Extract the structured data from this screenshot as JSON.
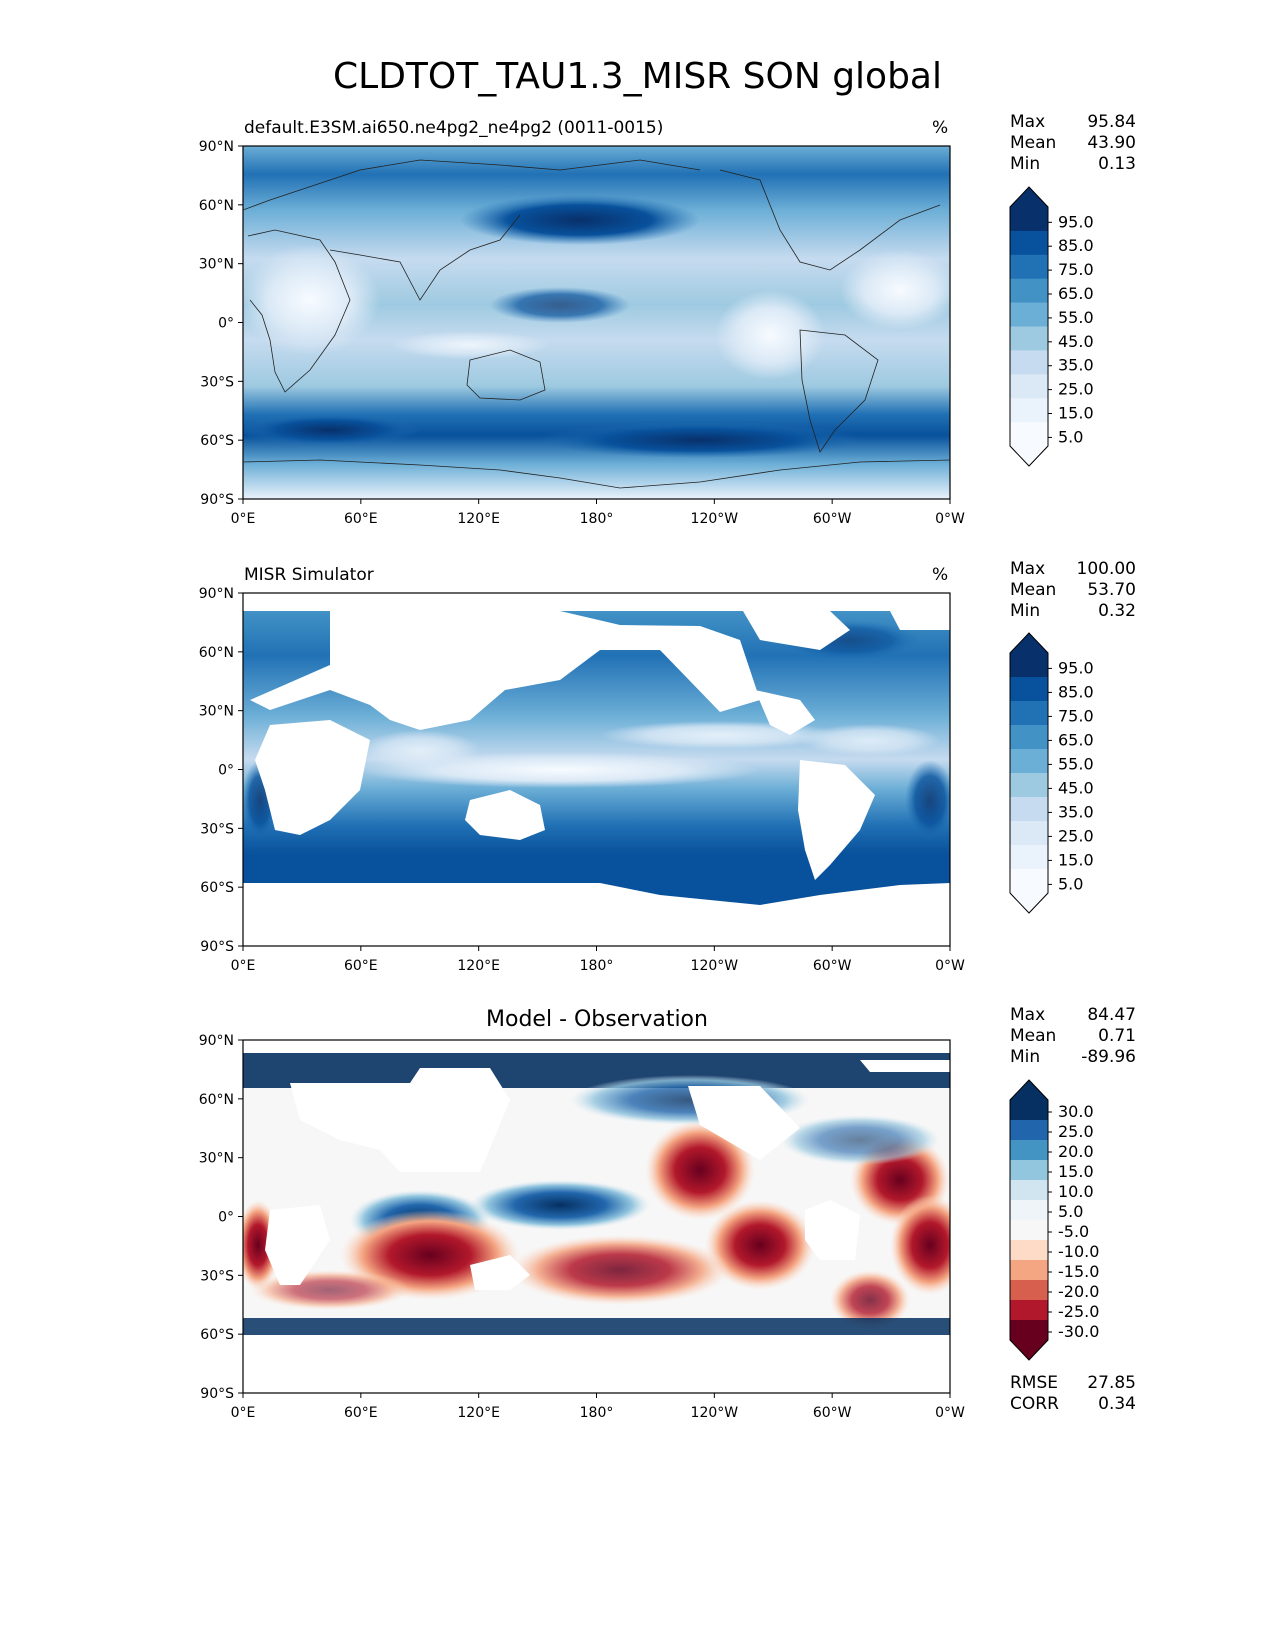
{
  "title": "CLDTOT_TAU1.3_MISR SON global",
  "lat_ticks": [
    "90°N",
    "60°N",
    "30°N",
    "0°",
    "30°S",
    "60°S",
    "90°S"
  ],
  "lon_ticks": [
    "0°E",
    "60°E",
    "120°E",
    "180°",
    "120°W",
    "60°W",
    "0°W"
  ],
  "panels": [
    {
      "id": "model",
      "title_left": "default.E3SM.ai650.ne4pg2_ne4pg2 (0011-0015)",
      "title_center": "",
      "unit": "%",
      "stats": [
        [
          "Max",
          "95.84"
        ],
        [
          "Mean",
          "43.90"
        ],
        [
          "Min",
          "0.13"
        ]
      ],
      "colorbar": {
        "labels": [
          "95.0",
          "85.0",
          "75.0",
          "65.0",
          "55.0",
          "45.0",
          "35.0",
          "25.0",
          "15.0",
          "5.0"
        ],
        "colors": [
          "#08306b",
          "#08519c",
          "#2171b5",
          "#4292c6",
          "#6baed6",
          "#9ecae1",
          "#c6dbef",
          "#dbe9f6",
          "#eaf2fb",
          "#f7fbff"
        ]
      }
    },
    {
      "id": "obs",
      "title_left": "MISR Simulator",
      "title_center": "",
      "unit": "%",
      "stats": [
        [
          "Max",
          "100.00"
        ],
        [
          "Mean",
          "53.70"
        ],
        [
          "Min",
          "0.32"
        ]
      ],
      "colorbar": {
        "labels": [
          "95.0",
          "85.0",
          "75.0",
          "65.0",
          "55.0",
          "45.0",
          "35.0",
          "25.0",
          "15.0",
          "5.0"
        ],
        "colors": [
          "#08306b",
          "#08519c",
          "#2171b5",
          "#4292c6",
          "#6baed6",
          "#9ecae1",
          "#c6dbef",
          "#dbe9f6",
          "#eaf2fb",
          "#f7fbff"
        ]
      }
    },
    {
      "id": "diff",
      "title_left": "",
      "title_center": "Model - Observation",
      "unit": "",
      "stats": [
        [
          "Max",
          "84.47"
        ],
        [
          "Mean",
          "0.71"
        ],
        [
          "Min",
          "-89.96"
        ]
      ],
      "extra_stats": [
        [
          "RMSE",
          "27.85"
        ],
        [
          "CORR",
          "0.34"
        ]
      ],
      "colorbar": {
        "labels": [
          "30.0",
          "25.0",
          "20.0",
          "15.0",
          "10.0",
          "5.0",
          "-5.0",
          "-10.0",
          "-15.0",
          "-20.0",
          "-25.0",
          "-30.0"
        ],
        "colors": [
          "#053061",
          "#2166ac",
          "#4393c3",
          "#92c5de",
          "#d1e5f0",
          "#eef4f8",
          "#f7f7f7",
          "#fddbc7",
          "#f4a582",
          "#d6604d",
          "#b2182b",
          "#67001f"
        ]
      }
    }
  ]
}
